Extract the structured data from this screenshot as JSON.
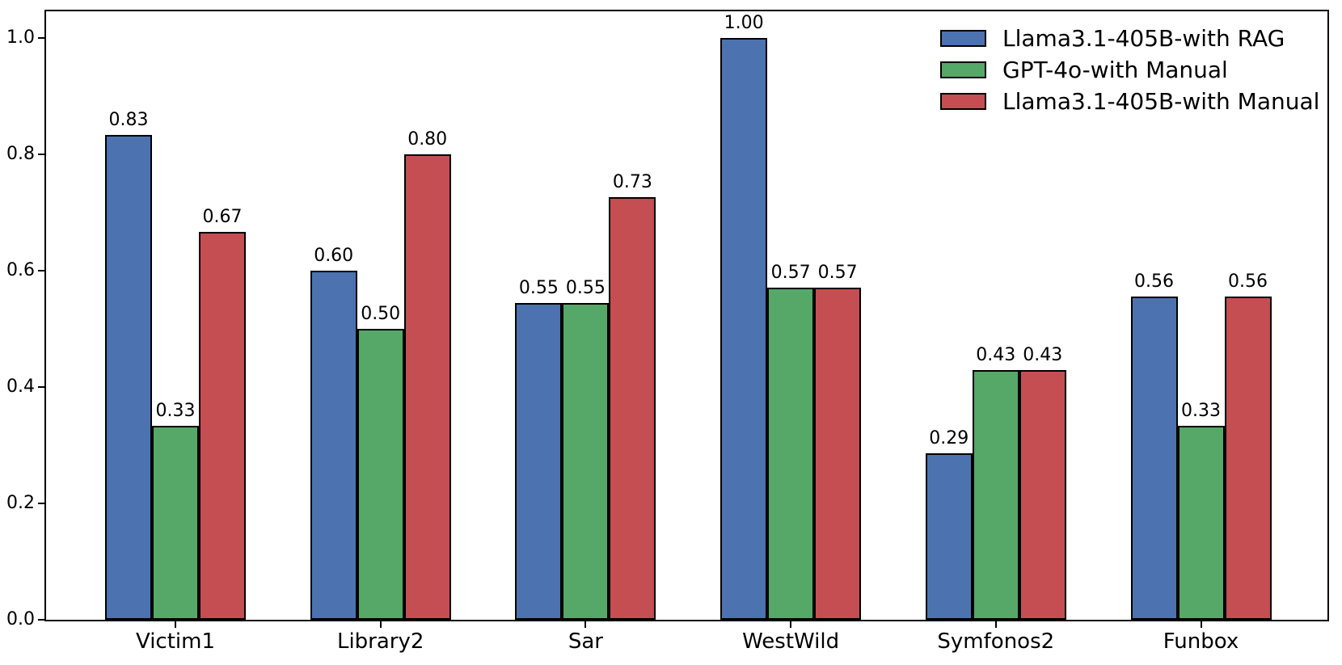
{
  "figure": {
    "background": "#ffffff",
    "frame_color": "#000000"
  },
  "chart_data": {
    "type": "bar",
    "title": "",
    "xlabel": "",
    "ylabel": "",
    "grid": false,
    "legend_position": "upper right",
    "bar_edge_color": "#000000",
    "ylim": [
      0.0,
      1.05
    ],
    "categories": [
      "Victim1",
      "Library2",
      "Sar",
      "WestWild",
      "Symfonos2",
      "Funbox"
    ],
    "series": [
      {
        "name": "Llama3.1-405B-with RAG",
        "color": "#4C72B0",
        "values": [
          0.833,
          0.6,
          0.545,
          1.0,
          0.286,
          0.556
        ],
        "labels": [
          "0.83",
          "0.60",
          "0.55",
          "1.00",
          "0.29",
          "0.56"
        ]
      },
      {
        "name": "GPT-4o-with Manual",
        "color": "#55A868",
        "values": [
          0.333,
          0.5,
          0.545,
          0.571,
          0.429,
          0.333
        ],
        "labels": [
          "0.33",
          "0.50",
          "0.55",
          "0.57",
          "0.43",
          "0.33"
        ]
      },
      {
        "name": "Llama3.1-405B-with Manual",
        "color": "#C44E52",
        "values": [
          0.667,
          0.8,
          0.727,
          0.571,
          0.429,
          0.556
        ],
        "labels": [
          "0.67",
          "0.80",
          "0.73",
          "0.57",
          "0.43",
          "0.56"
        ]
      }
    ],
    "yticks": [
      {
        "value": 0.0,
        "label": "0.0"
      },
      {
        "value": 0.2,
        "label": "0.2"
      },
      {
        "value": 0.4,
        "label": "0.4"
      },
      {
        "value": 0.6,
        "label": "0.6"
      },
      {
        "value": 0.8,
        "label": "0.8"
      },
      {
        "value": 1.0,
        "label": "1.0"
      }
    ]
  }
}
